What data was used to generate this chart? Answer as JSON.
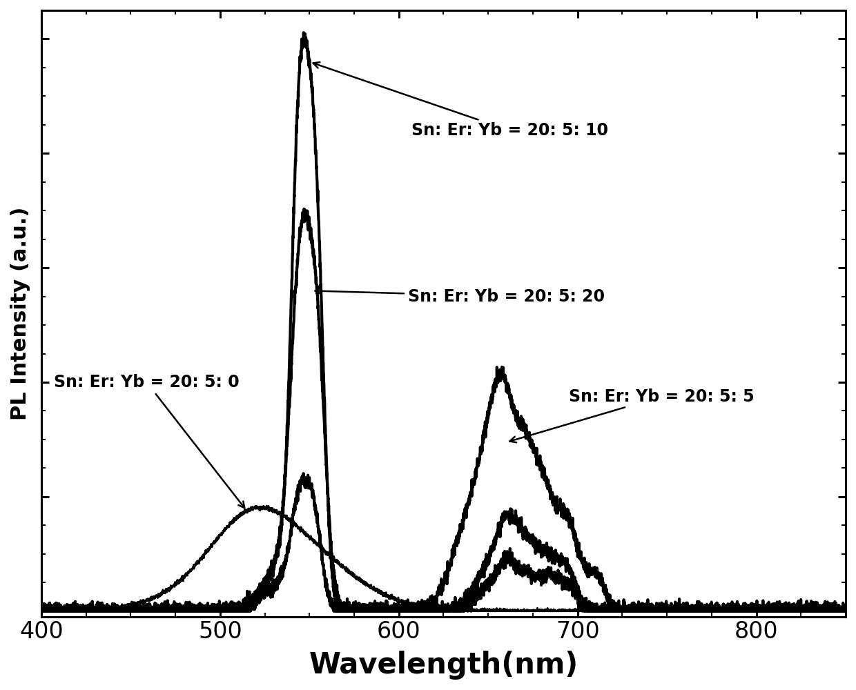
{
  "xlabel": "Wavelength(nm)",
  "ylabel": "PL Intensity (a.u.)",
  "xlim": [
    400,
    850
  ],
  "ylim": [
    -0.01,
    1.05
  ],
  "xticks": [
    400,
    500,
    600,
    700,
    800
  ],
  "background_color": "#ffffff",
  "line_color": "#000000"
}
